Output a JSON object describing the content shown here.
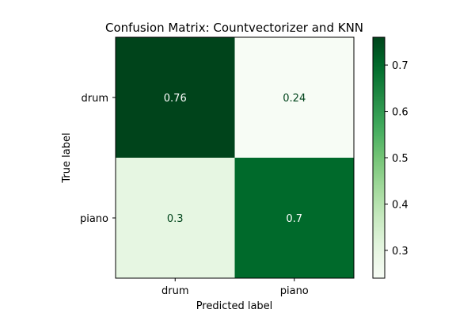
{
  "chart_data": {
    "type": "heatmap",
    "title": "Confusion Matrix: Countvectorizer and KNN",
    "xlabel": "Predicted label",
    "ylabel": "True label",
    "x_categories": [
      "drum",
      "piano"
    ],
    "y_categories": [
      "drum",
      "piano"
    ],
    "values": [
      [
        0.76,
        0.24
      ],
      [
        0.3,
        0.7
      ]
    ],
    "value_labels": [
      [
        "0.76",
        "0.24"
      ],
      [
        "0.3",
        "0.7"
      ]
    ],
    "colormap": "Greens",
    "colorbar": {
      "vmin": 0.24,
      "vmax": 0.76,
      "ticks": [
        0.3,
        0.4,
        0.5,
        0.6,
        0.7
      ],
      "tick_labels": [
        "0.3",
        "0.4",
        "0.5",
        "0.6",
        "0.7"
      ]
    },
    "grid": false
  }
}
